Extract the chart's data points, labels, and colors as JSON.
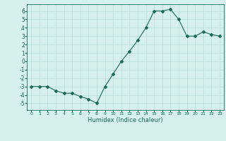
{
  "xlabel": "Humidex (Indice chaleur)",
  "ylabel": "",
  "x": [
    0,
    1,
    2,
    3,
    4,
    5,
    6,
    7,
    8,
    9,
    10,
    11,
    12,
    13,
    14,
    15,
    16,
    17,
    18,
    19,
    20,
    21,
    22,
    23
  ],
  "y": [
    -3,
    -3,
    -3,
    -3.5,
    -3.8,
    -3.8,
    -4.2,
    -4.5,
    -5.0,
    -3.0,
    -1.5,
    0.0,
    1.2,
    2.5,
    4.0,
    6.0,
    6.0,
    6.2,
    5.0,
    3.0,
    3.0,
    3.5,
    3.2,
    3.0
  ],
  "ylim": [
    -5.8,
    6.8
  ],
  "xlim": [
    -0.5,
    23.5
  ],
  "line_color": "#1a6b5a",
  "marker": "D",
  "marker_size": 2.0,
  "bg_color": "#d6f0ee",
  "grid_color": "#b8dbd8",
  "tick_label_color": "#1a6b5a",
  "axis_color": "#1a6b5a",
  "xlabel_color": "#1a6b5a",
  "yticks": [
    -5,
    -4,
    -3,
    -2,
    -1,
    0,
    1,
    2,
    3,
    4,
    5,
    6
  ],
  "xticks": [
    0,
    1,
    2,
    3,
    4,
    5,
    6,
    7,
    8,
    9,
    10,
    11,
    12,
    13,
    14,
    15,
    16,
    17,
    18,
    19,
    20,
    21,
    22,
    23
  ],
  "xlabel_fontsize": 6.0,
  "xtick_fontsize": 4.5,
  "ytick_fontsize": 5.5,
  "linewidth": 0.8
}
